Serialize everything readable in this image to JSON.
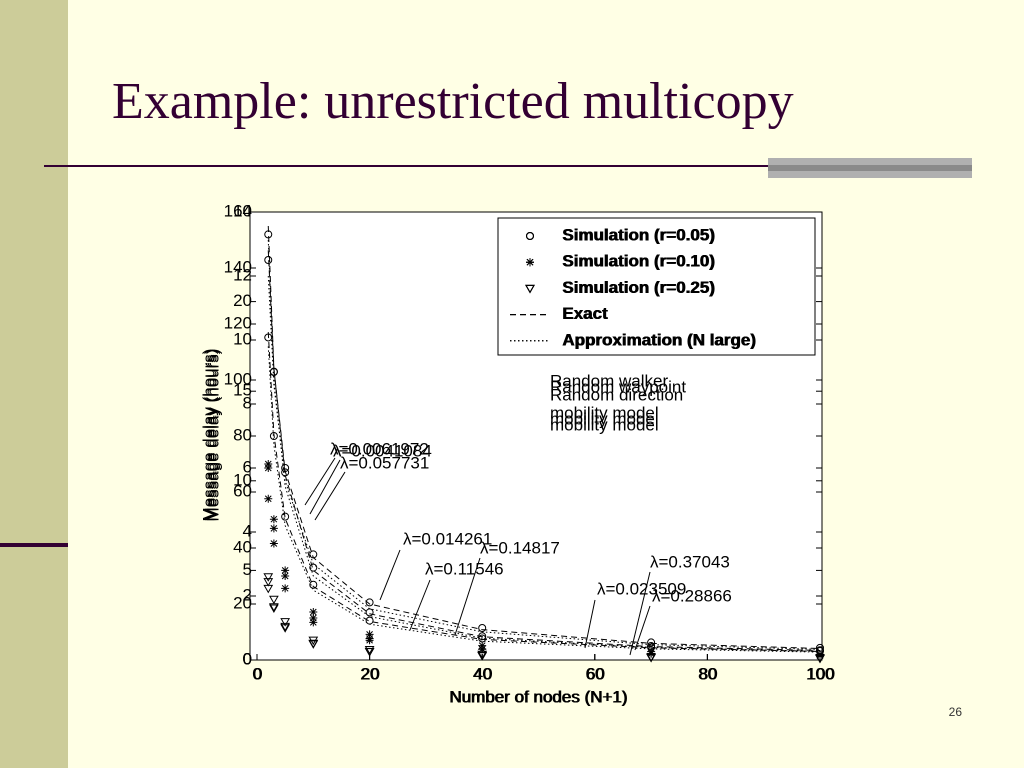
{
  "slide": {
    "title": "Example: unrestricted multicopy",
    "page_number": 26
  },
  "chart_data": [
    {
      "type": "line",
      "xlabel": "Number of nodes (N+1)",
      "ylabel": "Message delay (hours)",
      "x": [
        2,
        3,
        5,
        10,
        20,
        40,
        70,
        100
      ],
      "xlim": [
        0,
        100
      ],
      "xticks": [
        0,
        20,
        40,
        60,
        80,
        100
      ],
      "ylim": [
        0,
        160
      ],
      "yticks": [
        0,
        20,
        40,
        60,
        80,
        100,
        120,
        140,
        160
      ],
      "series": [
        {
          "name": "Simulation (r=0.05)",
          "color": "#000000",
          "style": "circle",
          "values": [
            152,
            103,
            67,
            33,
            17,
            8.5,
            5,
            3.5
          ]
        },
        {
          "name": "Simulation (r=0.10)",
          "color": "#000000",
          "style": "star",
          "values": [
            70,
            47,
            30,
            15,
            7.7,
            3.9,
            2.3,
            1.6
          ]
        },
        {
          "name": "Simulation (r=0.25)",
          "color": "#000000",
          "style": "triangle",
          "values": [
            28,
            19,
            12,
            6,
            3,
            1.5,
            0.9,
            0.6
          ]
        },
        {
          "name": "Exact",
          "color": "#000000",
          "style": "dashed",
          "values": [
            155,
            104,
            66,
            32,
            16.5,
            8.3,
            4.8,
            3.4
          ]
        },
        {
          "name": "Approximation (N large)",
          "color": "#000000",
          "style": "dotted",
          "values": [
            150,
            100,
            62,
            30,
            15.5,
            7.8,
            4.5,
            3.1
          ]
        }
      ],
      "annotations": [
        "Random walker",
        "mobility model",
        "λ=0.0041084",
        "λ=0.014261",
        "λ=0.023509"
      ]
    },
    {
      "type": "line",
      "xlabel": "Number of nodes (N+1)",
      "ylabel": "Message delay (hours)",
      "x": [
        2,
        3,
        5,
        10,
        20,
        40,
        70,
        100
      ],
      "xlim": [
        0,
        100
      ],
      "xticks": [
        0,
        20,
        40,
        60,
        80,
        100
      ],
      "ylim": [
        0,
        14
      ],
      "yticks": [
        0,
        2,
        4,
        6,
        8,
        10,
        12,
        14
      ],
      "series": [
        {
          "name": "Simulation (r=0.05)",
          "color": "#000000",
          "style": "circle",
          "values": [
            12.5,
            9,
            6,
            3.3,
            1.8,
            1,
            0.55,
            0.38
          ]
        },
        {
          "name": "Simulation (r=0.10)",
          "color": "#000000",
          "style": "star",
          "values": [
            6,
            4.4,
            2.8,
            1.5,
            0.8,
            0.45,
            0.26,
            0.18
          ]
        },
        {
          "name": "Simulation (r=0.25)",
          "color": "#000000",
          "style": "triangle",
          "values": [
            2.6,
            1.9,
            1.2,
            0.62,
            0.33,
            0.18,
            0.1,
            0.07
          ]
        },
        {
          "name": "Exact",
          "color": "#000000",
          "style": "dashed",
          "values": [
            12.8,
            9.1,
            5.9,
            3.2,
            1.75,
            0.95,
            0.52,
            0.36
          ]
        },
        {
          "name": "Approximation (N large)",
          "color": "#000000",
          "style": "dotted",
          "values": [
            12,
            8.6,
            5.6,
            3,
            1.6,
            0.88,
            0.48,
            0.33
          ]
        }
      ],
      "annotations": [
        "Random waypoint",
        "mobility model",
        "λ=0.057731",
        "λ=0.11546",
        "λ=0.28866"
      ]
    },
    {
      "type": "line",
      "xlabel": "Number of nodes (N+1)",
      "ylabel": "Message delay (hours)",
      "x": [
        2,
        3,
        5,
        10,
        20,
        40,
        70,
        100
      ],
      "xlim": [
        0,
        100
      ],
      "xticks": [
        0,
        20,
        40,
        60,
        80,
        100
      ],
      "ylim": [
        0,
        25
      ],
      "yticks": [
        0,
        5,
        10,
        15,
        20
      ],
      "series": [
        {
          "name": "Simulation (r=0.05)",
          "color": "#000000",
          "style": "circle",
          "values": [
            18,
            12.5,
            8,
            4.2,
            2.2,
            1.2,
            0.7,
            0.5
          ]
        },
        {
          "name": "Simulation (r=0.10)",
          "color": "#000000",
          "style": "star",
          "values": [
            9,
            6.5,
            4,
            2.1,
            1.1,
            0.6,
            0.35,
            0.25
          ]
        },
        {
          "name": "Simulation (r=0.25)",
          "color": "#000000",
          "style": "triangle",
          "values": [
            4,
            2.9,
            1.8,
            0.9,
            0.48,
            0.26,
            0.15,
            0.1
          ]
        },
        {
          "name": "Exact",
          "color": "#000000",
          "style": "dashed",
          "values": [
            18.3,
            12.6,
            7.9,
            4.1,
            2.15,
            1.15,
            0.68,
            0.48
          ]
        },
        {
          "name": "Approximation (N large)",
          "color": "#000000",
          "style": "dotted",
          "values": [
            17.5,
            12,
            7.5,
            3.9,
            2,
            1.05,
            0.62,
            0.44
          ]
        }
      ],
      "annotations": [
        "Random direction",
        "mobility model",
        "λ=0.0061972",
        "λ=0.14817",
        "λ=0.37043"
      ]
    }
  ]
}
